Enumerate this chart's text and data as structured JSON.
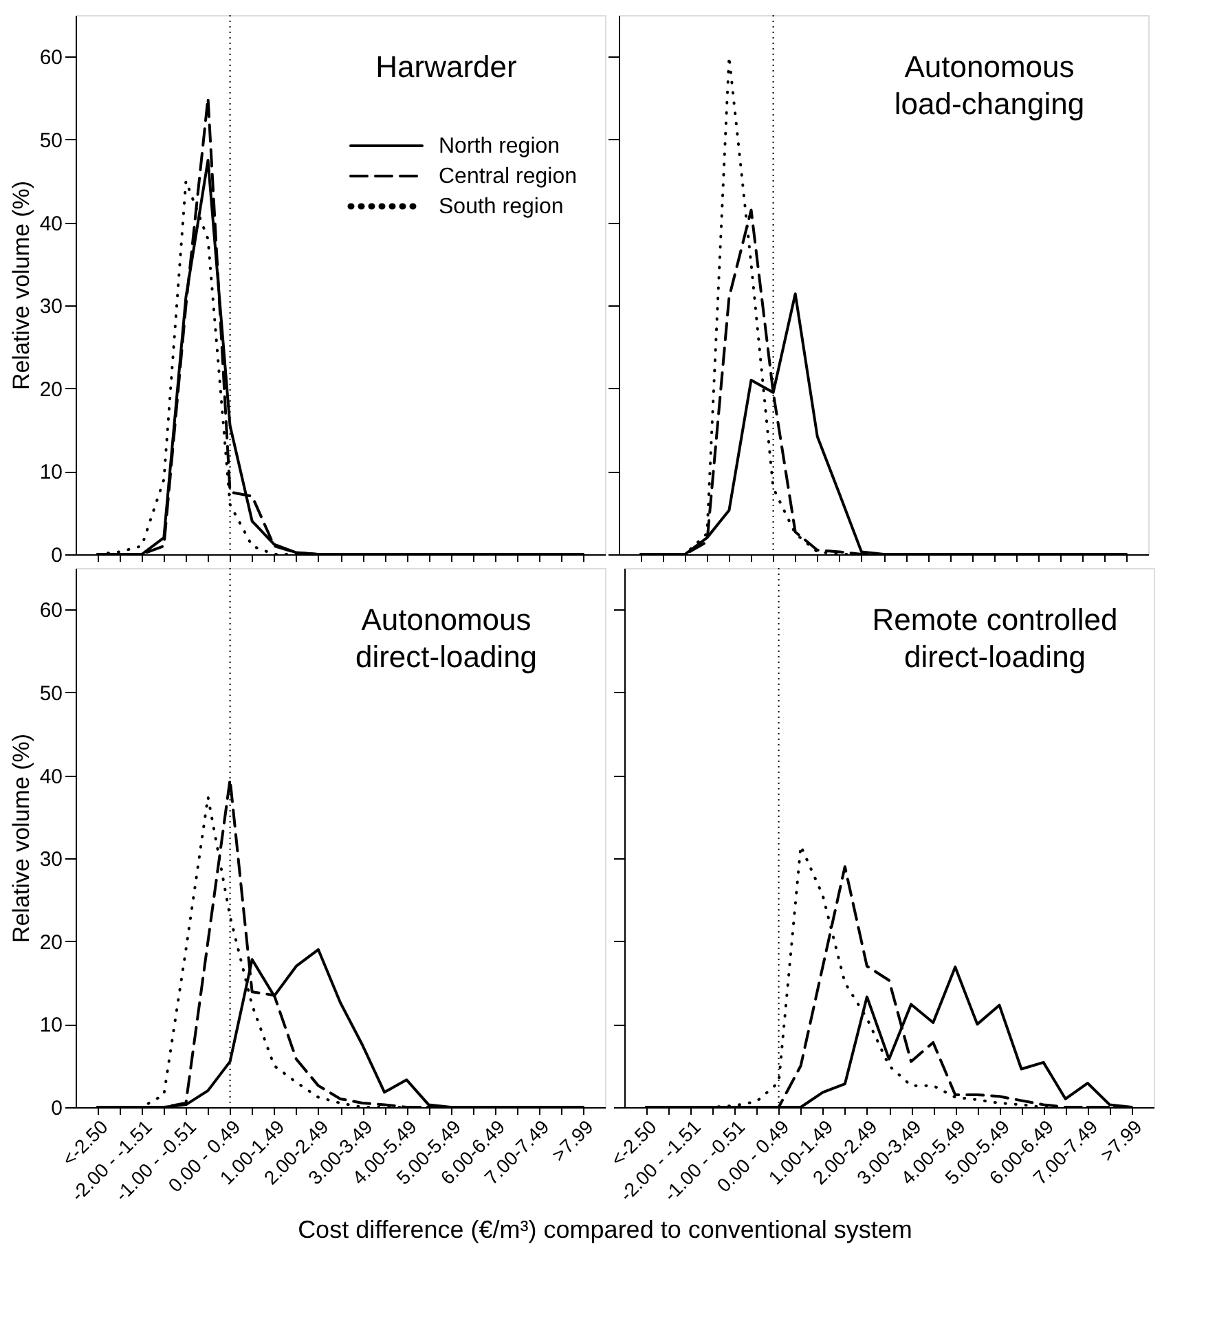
{
  "chart_data": [
    {
      "type": "line",
      "title": "Harwarder",
      "ylabel": "Relative volume (%)",
      "categories": [
        "<-2.50",
        null,
        "-2.00 - -1.51",
        null,
        "-1.00 - -0.51",
        null,
        "0.00 - 0.49",
        null,
        "1.00-1.49",
        null,
        "2.00-2.49",
        null,
        "3.00-3.49",
        null,
        "4.00-5.49",
        null,
        "5.00-5.49",
        null,
        "6.00-6.49",
        null,
        "7.00-7.49",
        null,
        ">7.99"
      ],
      "ylim": [
        0,
        65
      ],
      "yticks": [
        0,
        10,
        20,
        30,
        40,
        50,
        60
      ],
      "legend": "top right",
      "tick_labels": "y",
      "marker": "none",
      "ref_lines": [
        {
          "axis": "x",
          "value": "0.00 - 0.49",
          "color": "#000000",
          "line_style": "dotted"
        }
      ],
      "series": [
        {
          "name": "North region",
          "color": "#000000",
          "line_style": "solid",
          "values": [
            0,
            0,
            0,
            2,
            31,
            47.5,
            15.5,
            4,
            1.2,
            0.2,
            0,
            0,
            0,
            0,
            0,
            0,
            0,
            0,
            0,
            0,
            0,
            0,
            0
          ]
        },
        {
          "name": "Central region",
          "color": "#000000",
          "line_style": "dashed",
          "values": [
            0,
            0,
            0,
            1,
            30,
            55,
            7.5,
            7,
            1,
            0.2,
            0,
            0,
            0,
            0,
            0,
            0,
            0,
            0,
            0,
            0,
            0,
            0,
            0
          ]
        },
        {
          "name": "South region",
          "color": "#000000",
          "line_style": "dotted",
          "values": [
            0,
            0.3,
            1,
            9,
            45,
            38,
            6,
            1,
            0,
            0,
            0,
            0,
            0,
            0,
            0,
            0,
            0,
            0,
            0,
            0,
            0,
            0,
            0
          ]
        }
      ]
    },
    {
      "type": "line",
      "title": "Autonomous load-changing",
      "categories": [
        "<-2.50",
        null,
        "-2.00 - -1.51",
        null,
        "-1.00 - -0.51",
        null,
        "0.00 - 0.49",
        null,
        "1.00-1.49",
        null,
        "2.00-2.49",
        null,
        "3.00-3.49",
        null,
        "4.00-5.49",
        null,
        "5.00-5.49",
        null,
        "6.00-6.49",
        null,
        "7.00-7.49",
        null,
        ">7.99"
      ],
      "ylim": [
        0,
        65
      ],
      "yticks": [
        0,
        10,
        20,
        30,
        40,
        50,
        60
      ],
      "tick_labels": false,
      "marker": "none",
      "ref_lines": [
        {
          "axis": "x",
          "value": "0.00 - 0.49",
          "color": "#000000",
          "line_style": "dotted"
        }
      ],
      "series": [
        {
          "color": "#000000",
          "line_style": "solid",
          "values": [
            0,
            0,
            0,
            2,
            5.3,
            21,
            19.5,
            31.4,
            14.2,
            7.3,
            0.3,
            0,
            0,
            0,
            0,
            0,
            0,
            0,
            0,
            0,
            0,
            0,
            0
          ]
        },
        {
          "color": "#000000",
          "line_style": "dashed",
          "values": [
            0,
            0,
            0,
            1.5,
            31,
            41.5,
            19.5,
            2.7,
            0.5,
            0.3,
            0,
            0,
            0,
            0,
            0,
            0,
            0,
            0,
            0,
            0,
            0,
            0,
            0
          ]
        },
        {
          "color": "#000000",
          "line_style": "dotted",
          "values": [
            0,
            0,
            0,
            2.5,
            60,
            35,
            8,
            2.5,
            0.3,
            0,
            0,
            0,
            0,
            0,
            0,
            0,
            0,
            0,
            0,
            0,
            0,
            0,
            0
          ]
        }
      ]
    },
    {
      "type": "line",
      "title": "Autonomous direct-loading",
      "ylabel": "Relative volume (%)",
      "xlabel": "Cost difference (€/m³) compared to conventional system",
      "categories": [
        "<-2.50",
        null,
        "-2.00 - -1.51",
        null,
        "-1.00 - -0.51",
        null,
        "0.00 - 0.49",
        null,
        "1.00-1.49",
        null,
        "2.00-2.49",
        null,
        "3.00-3.49",
        null,
        "4.00-5.49",
        null,
        "5.00-5.49",
        null,
        "6.00-6.49",
        null,
        "7.00-7.49",
        null,
        ">7.99"
      ],
      "ylim": [
        0,
        65
      ],
      "yticks": [
        0,
        10,
        20,
        30,
        40,
        50,
        60
      ],
      "marker": "none",
      "ref_lines": [
        {
          "axis": "x",
          "value": "0.00 - 0.49",
          "color": "#000000",
          "line_style": "dotted"
        }
      ],
      "series": [
        {
          "color": "#000000",
          "line_style": "solid",
          "values": [
            0,
            0,
            0,
            0,
            0.3,
            2,
            5.5,
            17.8,
            13.4,
            17,
            19,
            12.6,
            7.5,
            1.8,
            3.3,
            0.3,
            0,
            0,
            0,
            0,
            0,
            0,
            0
          ]
        },
        {
          "color": "#000000",
          "line_style": "dashed",
          "values": [
            0,
            0,
            0,
            0,
            0.5,
            20,
            39.5,
            13.9,
            13.5,
            5.8,
            2.6,
            1,
            0.5,
            0.3,
            0,
            0,
            0,
            0,
            0,
            0,
            0,
            0,
            0
          ]
        },
        {
          "color": "#000000",
          "line_style": "dotted",
          "values": [
            0,
            0,
            0,
            1.5,
            19,
            37.4,
            23,
            12.3,
            5,
            3,
            1.2,
            0.5,
            0,
            0,
            0,
            0,
            0,
            0,
            0,
            0,
            0,
            0,
            0
          ]
        }
      ]
    },
    {
      "type": "line",
      "title": "Remote controlled direct-loading",
      "categories": [
        "<-2.50",
        null,
        "-2.00 - -1.51",
        null,
        "-1.00 - -0.51",
        null,
        "0.00 - 0.49",
        null,
        "1.00-1.49",
        null,
        "2.00-2.49",
        null,
        "3.00-3.49",
        null,
        "4.00-5.49",
        null,
        "5.00-5.49",
        null,
        "6.00-6.49",
        null,
        "7.00-7.49",
        null,
        ">7.99"
      ],
      "ylim": [
        0,
        65
      ],
      "yticks": [
        0,
        10,
        20,
        30,
        40,
        50,
        60
      ],
      "tick_labels": "x",
      "marker": "none",
      "ref_lines": [
        {
          "axis": "x",
          "value": "0.00 - 0.49",
          "color": "#000000",
          "line_style": "dotted"
        }
      ],
      "series": [
        {
          "color": "#000000",
          "line_style": "solid",
          "values": [
            0,
            0,
            0,
            0,
            0,
            0,
            0,
            0,
            1.8,
            2.8,
            13.3,
            5.8,
            12.4,
            10.2,
            16.9,
            10,
            12.3,
            4.6,
            5.4,
            1,
            2.9,
            0.3,
            0
          ]
        },
        {
          "color": "#000000",
          "line_style": "dashed",
          "values": [
            0,
            0,
            0,
            0,
            0,
            0,
            0,
            5,
            17,
            29,
            17,
            15.3,
            5.5,
            7.8,
            1.5,
            1.5,
            1.3,
            0.8,
            0.3,
            0,
            0,
            0,
            0
          ]
        },
        {
          "color": "#000000",
          "line_style": "dotted",
          "values": [
            0,
            0,
            0,
            0,
            0.2,
            0.7,
            3,
            31.5,
            25.5,
            15,
            10.7,
            5,
            2.6,
            2.6,
            1.2,
            0.9,
            0.5,
            0.3,
            0,
            0,
            0,
            0,
            0
          ]
        }
      ]
    }
  ]
}
